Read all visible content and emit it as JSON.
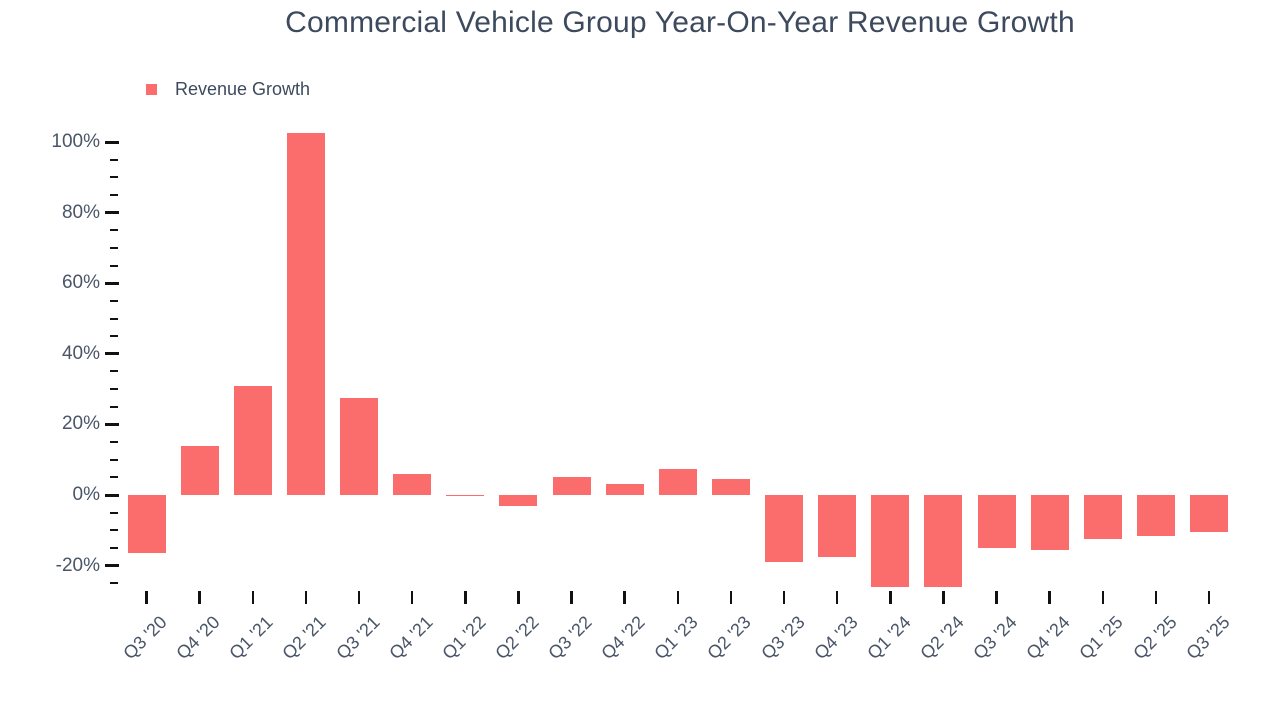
{
  "chart_data": {
    "type": "bar",
    "title": "Commercial Vehicle Group Year-On-Year Revenue Growth",
    "series_name": "Revenue Growth",
    "categories": [
      "Q3 '20",
      "Q4 '20",
      "Q1 '21",
      "Q2 '21",
      "Q3 '21",
      "Q4 '21",
      "Q1 '22",
      "Q2 '22",
      "Q3 '22",
      "Q4 '22",
      "Q1 '23",
      "Q2 '23",
      "Q3 '23",
      "Q4 '23",
      "Q1 '24",
      "Q2 '24",
      "Q3 '24",
      "Q4 '24",
      "Q1 '25",
      "Q2 '25",
      "Q3 '25"
    ],
    "values": [
      -16.5,
      14,
      31,
      102.5,
      27.5,
      6,
      -0.4,
      -3,
      5,
      3,
      7.5,
      4.5,
      -19,
      -17.5,
      -26,
      -26,
      -15,
      -15.5,
      -12.5,
      -11.5,
      -10.5
    ],
    "unit": "%",
    "xlabel": "",
    "ylabel": "",
    "ylim": [
      -27,
      104
    ],
    "ytick_major_values": [
      100,
      80,
      60,
      40,
      20,
      0,
      -20
    ],
    "ytick_labels": [
      "100%",
      "80%",
      "60%",
      "40%",
      "20%",
      "0%",
      "-20%"
    ],
    "ytick_minor_step": 5,
    "grid": false,
    "legend_position": "top-left",
    "bar_color": "#fb6d6d"
  },
  "colors": {
    "bar": "#fb6d6d",
    "title_text": "#3d4a5e",
    "axis_text": "#4a5568",
    "tick": "#111111",
    "background": "#ffffff"
  }
}
